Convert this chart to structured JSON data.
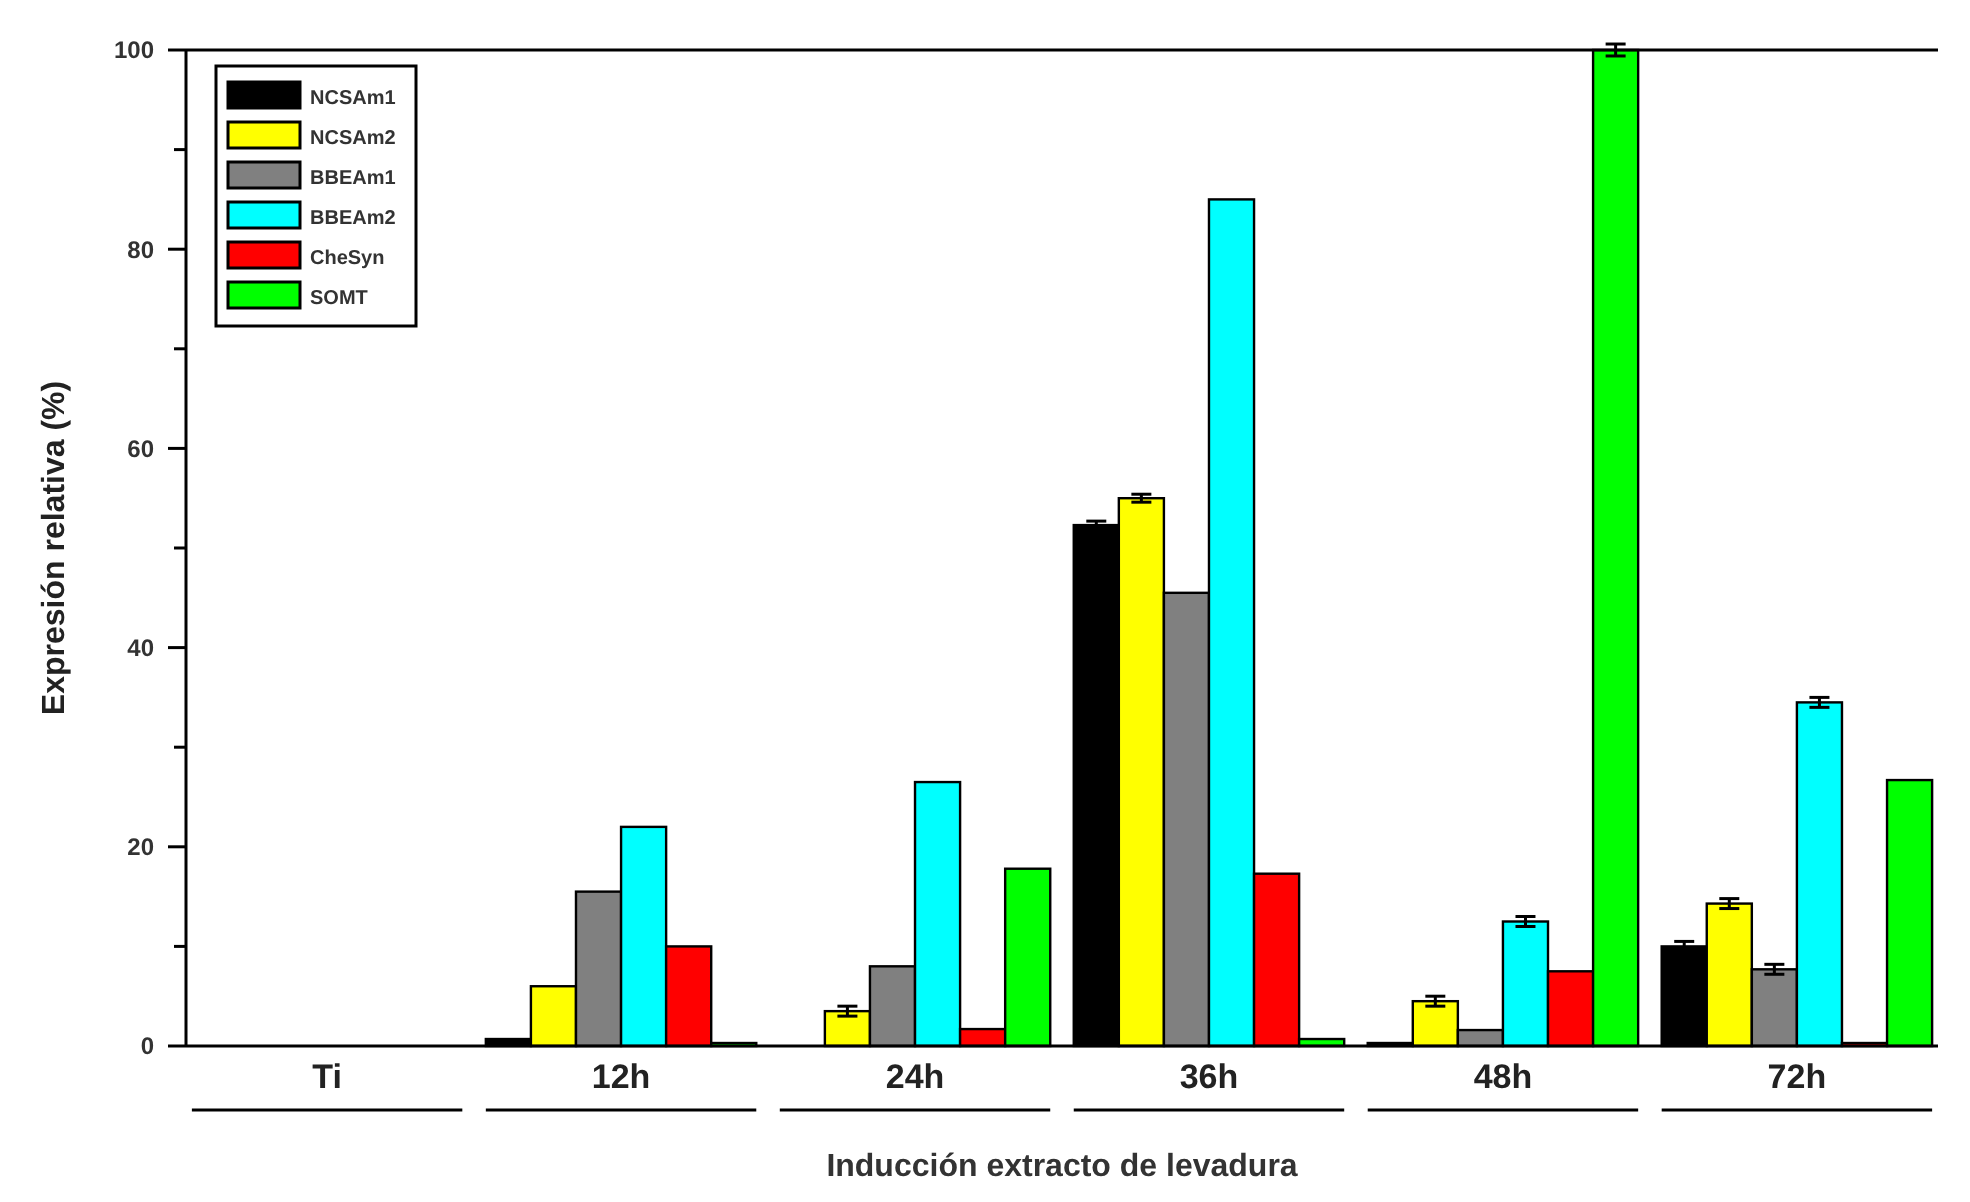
{
  "chart_data": {
    "type": "bar",
    "xlabel": "Inducción extracto de levadura",
    "ylabel": "Expresión relativa (%)",
    "categories": [
      "Ti",
      "12h",
      "24h",
      "36h",
      "48h",
      "72h"
    ],
    "series": [
      {
        "name": "NCSAm1",
        "color": "#000000",
        "values": [
          0,
          0.7,
          0,
          52.3,
          0.3,
          10
        ],
        "errors": [
          null,
          null,
          null,
          0.4,
          null,
          0.5
        ]
      },
      {
        "name": "NCSAm2",
        "color": "#ffff00",
        "values": [
          0,
          6,
          3.5,
          55,
          4.5,
          14.3
        ],
        "errors": [
          null,
          null,
          0.5,
          0.4,
          0.5,
          0.5
        ]
      },
      {
        "name": "BBEAm1",
        "color": "#808080",
        "values": [
          0,
          15.5,
          8,
          45.5,
          1.6,
          7.7
        ],
        "errors": [
          null,
          null,
          null,
          null,
          null,
          0.5
        ]
      },
      {
        "name": "BBEAm2",
        "color": "#00ffff",
        "values": [
          0,
          22,
          26.5,
          85,
          12.5,
          34.5
        ],
        "errors": [
          null,
          null,
          null,
          null,
          0.5,
          0.5
        ]
      },
      {
        "name": "CheSyn",
        "color": "#ff0000",
        "values": [
          0,
          10,
          1.7,
          17.3,
          7.5,
          0.3
        ]
      },
      {
        "name": "SOMT",
        "color": "#00ff00",
        "values": [
          0,
          0.3,
          17.8,
          0.7,
          100,
          26.7
        ],
        "errors": [
          null,
          null,
          null,
          null,
          0.6,
          null
        ]
      }
    ],
    "ylim": [
      0,
      100
    ],
    "yticks": [
      0,
      {
        "value": 10,
        "label": null
      },
      20,
      {
        "value": 30,
        "label": null
      },
      40,
      {
        "value": 50,
        "label": null
      },
      60,
      {
        "value": 70,
        "label": null
      },
      80,
      {
        "value": 90,
        "label": null
      },
      100
    ],
    "legend": "top left",
    "grid": false
  }
}
